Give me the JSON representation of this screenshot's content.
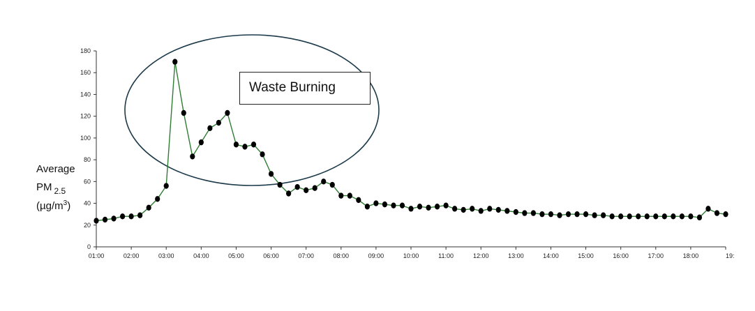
{
  "chart_data": {
    "type": "line",
    "ylabel_prefix": "Average",
    "ylabel_pm": "PM",
    "ylabel_sub": "2.5",
    "ylabel_unit_open": "(µg/m",
    "ylabel_unit_sup": "3",
    "ylabel_unit_close": ")",
    "ylim": [
      0,
      180
    ],
    "yticks": [
      0,
      20,
      40,
      60,
      80,
      100,
      120,
      140,
      160,
      180
    ],
    "xlim": [
      1,
      19
    ],
    "xticks": [
      {
        "v": 1,
        "label": "01:00"
      },
      {
        "v": 2,
        "label": "02:00"
      },
      {
        "v": 3,
        "label": "03:00"
      },
      {
        "v": 4,
        "label": "04:00"
      },
      {
        "v": 5,
        "label": "05:00"
      },
      {
        "v": 6,
        "label": "06:00"
      },
      {
        "v": 7,
        "label": "07:00"
      },
      {
        "v": 8,
        "label": "08:00"
      },
      {
        "v": 9,
        "label": "09:00"
      },
      {
        "v": 10,
        "label": "10:00"
      },
      {
        "v": 11,
        "label": "11:00"
      },
      {
        "v": 12,
        "label": "12:00"
      },
      {
        "v": 13,
        "label": "13:00"
      },
      {
        "v": 14,
        "label": "14:00"
      },
      {
        "v": 15,
        "label": "15:00"
      },
      {
        "v": 16,
        "label": "16:00"
      },
      {
        "v": 17,
        "label": "17:00"
      },
      {
        "v": 18,
        "label": "18:00"
      },
      {
        "v": 19,
        "label": "19:"
      }
    ],
    "series": [
      {
        "color": "#2e7d32",
        "marker_color": "#000000",
        "points": [
          [
            1.0,
            24
          ],
          [
            1.25,
            25
          ],
          [
            1.5,
            26
          ],
          [
            1.75,
            28
          ],
          [
            2.0,
            28
          ],
          [
            2.25,
            29
          ],
          [
            2.5,
            36
          ],
          [
            2.75,
            44
          ],
          [
            3.0,
            56
          ],
          [
            3.25,
            170
          ],
          [
            3.5,
            123
          ],
          [
            3.75,
            83
          ],
          [
            4.0,
            96
          ],
          [
            4.25,
            109
          ],
          [
            4.5,
            114
          ],
          [
            4.75,
            123
          ],
          [
            5.0,
            94
          ],
          [
            5.25,
            92
          ],
          [
            5.5,
            94
          ],
          [
            5.75,
            85
          ],
          [
            6.0,
            67
          ],
          [
            6.25,
            57
          ],
          [
            6.5,
            49
          ],
          [
            6.75,
            55
          ],
          [
            7.0,
            52
          ],
          [
            7.25,
            54
          ],
          [
            7.5,
            60
          ],
          [
            7.75,
            57
          ],
          [
            8.0,
            47
          ],
          [
            8.25,
            47
          ],
          [
            8.5,
            43
          ],
          [
            8.75,
            37
          ],
          [
            9.0,
            40
          ],
          [
            9.25,
            39
          ],
          [
            9.5,
            38
          ],
          [
            9.75,
            38
          ],
          [
            10.0,
            35
          ],
          [
            10.25,
            37
          ],
          [
            10.5,
            36
          ],
          [
            10.75,
            37
          ],
          [
            11.0,
            38
          ],
          [
            11.25,
            35
          ],
          [
            11.5,
            34
          ],
          [
            11.75,
            35
          ],
          [
            12.0,
            33
          ],
          [
            12.25,
            35
          ],
          [
            12.5,
            34
          ],
          [
            12.75,
            33
          ],
          [
            13.0,
            32
          ],
          [
            13.25,
            31
          ],
          [
            13.5,
            31
          ],
          [
            13.75,
            30
          ],
          [
            14.0,
            30
          ],
          [
            14.25,
            29
          ],
          [
            14.5,
            30
          ],
          [
            14.75,
            30
          ],
          [
            15.0,
            30
          ],
          [
            15.25,
            29
          ],
          [
            15.5,
            29
          ],
          [
            15.75,
            28
          ],
          [
            16.0,
            28
          ],
          [
            16.25,
            28
          ],
          [
            16.5,
            28
          ],
          [
            16.75,
            28
          ],
          [
            17.0,
            28
          ],
          [
            17.25,
            28
          ],
          [
            17.5,
            28
          ],
          [
            17.75,
            28
          ],
          [
            18.0,
            28
          ],
          [
            18.25,
            27
          ],
          [
            18.5,
            35
          ],
          [
            18.75,
            31
          ],
          [
            19.0,
            30
          ]
        ]
      }
    ],
    "annotation": {
      "text": "Waste Burning",
      "shape": "ellipse",
      "ellipse_color": "#1c3a4a"
    },
    "grid": false
  }
}
